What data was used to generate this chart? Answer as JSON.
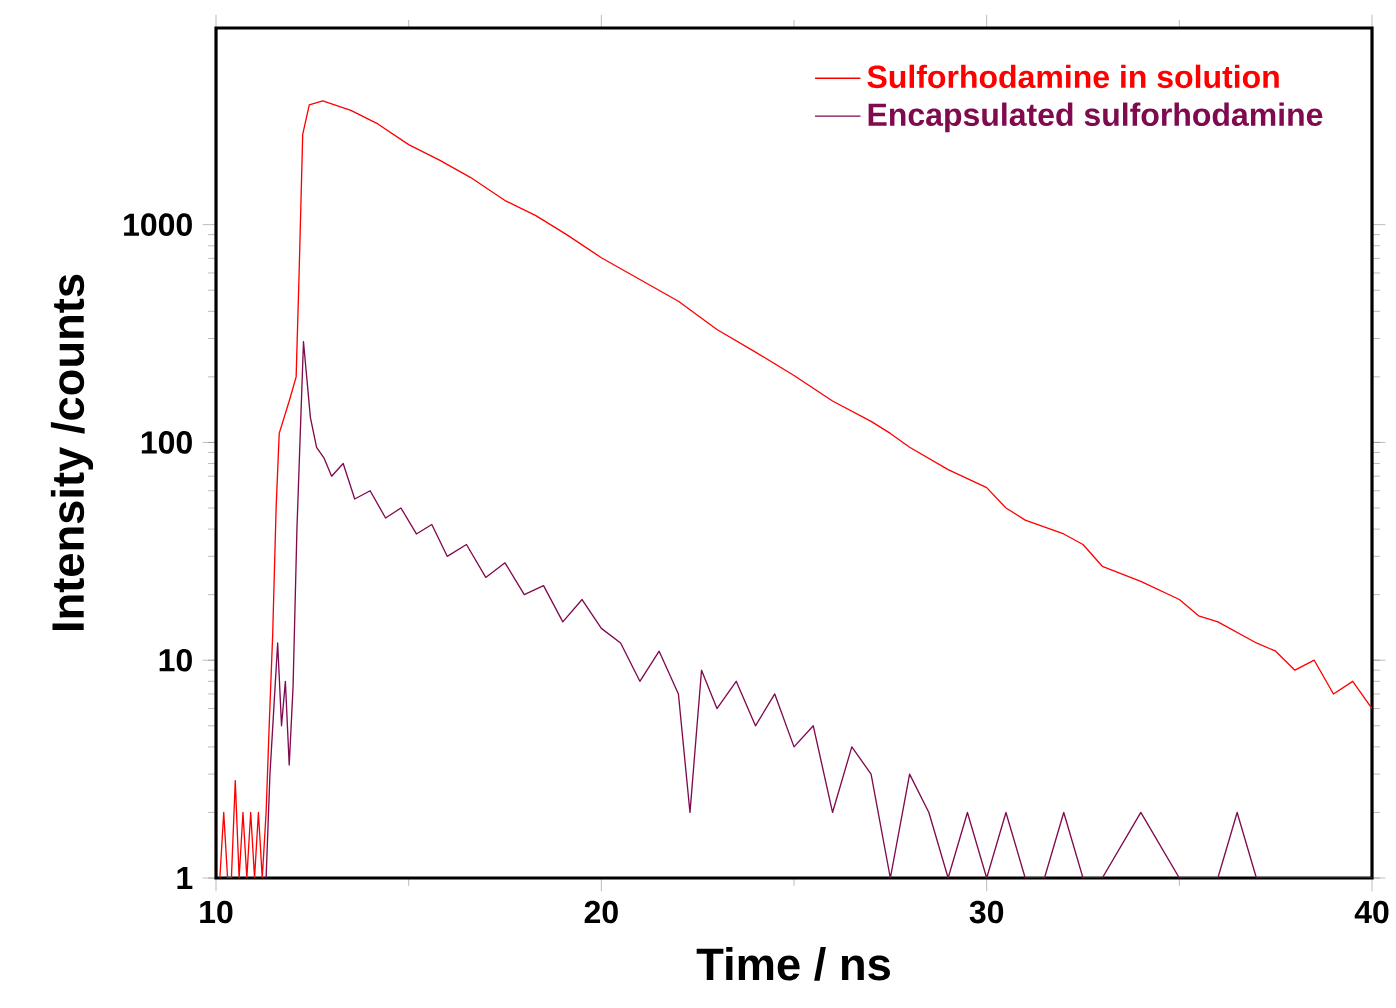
{
  "chart_data": {
    "type": "line",
    "xlabel": "Time / ns",
    "ylabel": "Intensity /counts",
    "xlim": [
      10,
      40
    ],
    "xticks": [
      10,
      20,
      30,
      40
    ],
    "ylim": [
      1,
      8000
    ],
    "yticks": [
      1,
      10,
      100,
      1000
    ],
    "log": "y",
    "grid": false,
    "legend": "top right",
    "marker": "none",
    "line_style": "solid",
    "series": [
      {
        "name": "Sulforhodamine in solution",
        "color": "#ff0000",
        "x": [
          10.1,
          10.2,
          10.3,
          10.4,
          10.5,
          10.6,
          10.7,
          10.8,
          10.9,
          11.0,
          11.1,
          11.2,
          11.3,
          11.38,
          11.47,
          11.56,
          11.64,
          11.9,
          12.08,
          12.16,
          12.25,
          12.42,
          12.77,
          13.5,
          14.2,
          15,
          15.8,
          16.6,
          17.5,
          18.3,
          19.1,
          20,
          21,
          22,
          23,
          24,
          25,
          26,
          27,
          27.5,
          28,
          29,
          30,
          30.5,
          31,
          32,
          32.5,
          33,
          34,
          35,
          35.5,
          36,
          37,
          37.5,
          38,
          38.5,
          39,
          39.5,
          40
        ],
        "values": [
          1,
          2,
          1,
          1,
          2.8,
          1,
          2,
          1,
          2,
          1,
          2,
          1,
          2,
          5,
          13,
          50,
          110,
          155,
          200,
          630,
          2600,
          3550,
          3700,
          3350,
          2900,
          2330,
          1980,
          1650,
          1290,
          1100,
          900,
          705,
          560,
          445,
          330,
          260,
          203,
          155,
          125,
          110,
          95,
          75,
          62,
          50,
          44,
          38,
          34,
          27,
          23,
          19,
          16,
          15,
          12,
          11,
          9,
          10,
          7,
          8,
          6
        ]
      },
      {
        "name": "Encapsulated sulforhodamine",
        "color": "#7f0a4e",
        "x": [
          11.3,
          11.4,
          11.5,
          11.6,
          11.7,
          11.8,
          11.9,
          12.0,
          12.1,
          12.27,
          12.45,
          12.61,
          12.8,
          13.0,
          13.3,
          13.6,
          14.0,
          14.4,
          14.8,
          15.2,
          15.6,
          16.0,
          16.5,
          17.0,
          17.5,
          18.0,
          18.5,
          19.0,
          19.5,
          20,
          20.5,
          21,
          21.5,
          22,
          22.3,
          22.6,
          23,
          23.5,
          24,
          24.5,
          25,
          25.5,
          26,
          26.5,
          27,
          27.5,
          28,
          28.5,
          29,
          29.5,
          30,
          30.5,
          31,
          31.5,
          32,
          32.5,
          33,
          34,
          35,
          36,
          36.5,
          37,
          38,
          40
        ],
        "values": [
          1,
          3,
          6,
          12,
          5,
          8,
          3.3,
          7.6,
          40,
          290,
          130,
          95,
          85,
          70,
          80,
          55,
          60,
          45,
          50,
          38,
          42,
          30,
          34,
          24,
          28,
          20,
          22,
          15,
          19,
          14,
          12,
          8,
          11,
          7,
          2,
          9,
          6,
          8,
          5,
          7,
          4,
          5,
          2,
          4,
          3,
          1,
          3,
          2,
          1,
          2,
          1,
          2,
          1,
          1,
          2,
          1,
          1,
          2,
          1,
          1,
          2,
          1,
          1,
          1
        ]
      }
    ]
  }
}
